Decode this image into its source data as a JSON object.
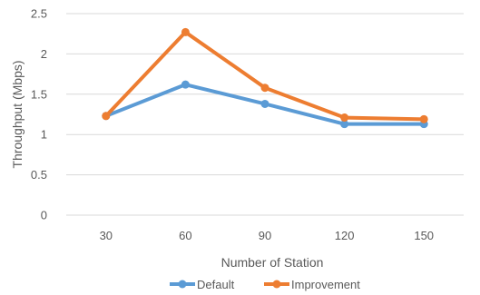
{
  "chart_data": {
    "type": "line",
    "xlabel": "Number  of Station",
    "ylabel": "Throughput (Mbps)",
    "categories": [
      "30",
      "60",
      "90",
      "120",
      "150"
    ],
    "ylim": [
      0,
      2.5
    ],
    "yticks": [
      "0",
      "0.5",
      "1",
      "1.5",
      "2",
      "2.5"
    ],
    "grid": true,
    "legend_position": "bottom",
    "series": [
      {
        "name": "Default",
        "color": "#5B9BD5",
        "values": [
          1.23,
          1.62,
          1.38,
          1.13,
          1.13
        ]
      },
      {
        "name": "Improvement",
        "color": "#ED7D31",
        "values": [
          1.23,
          2.27,
          1.58,
          1.21,
          1.19
        ]
      }
    ]
  }
}
